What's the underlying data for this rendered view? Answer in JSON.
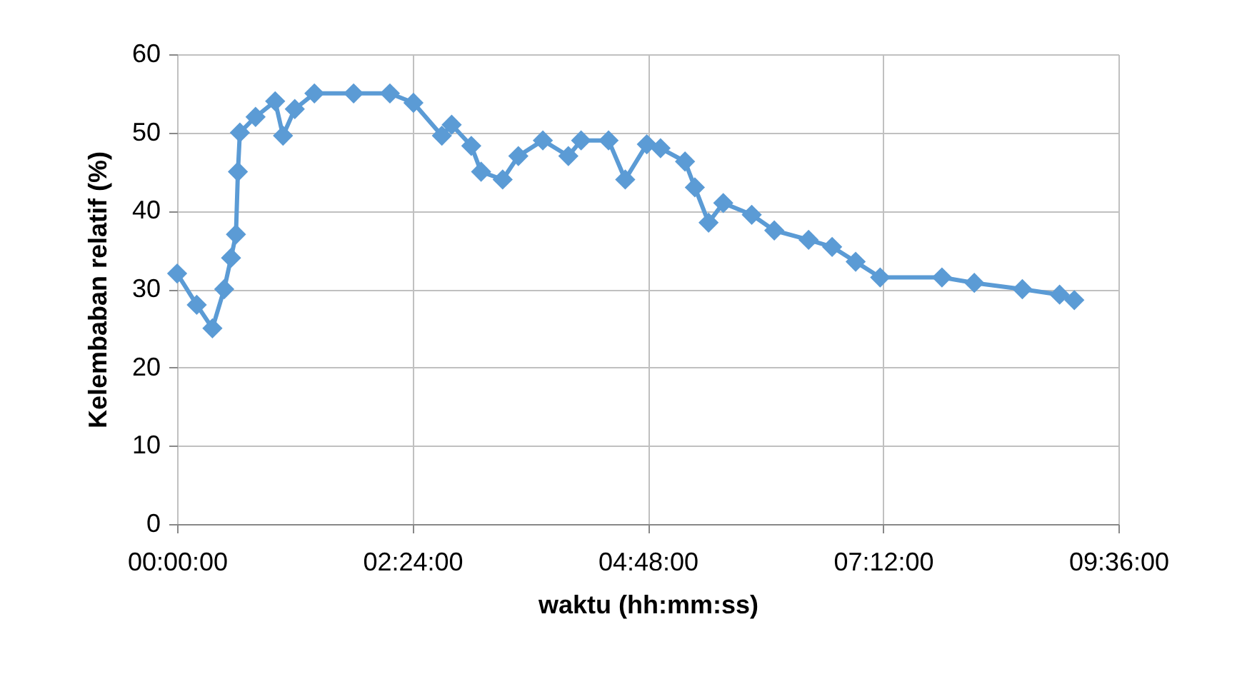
{
  "chart_data": {
    "type": "line",
    "xlabel": "waktu (hh:mm:ss)",
    "ylabel": "Kelembaban relatif (%)",
    "x": [
      0,
      0.2,
      0.36,
      0.48,
      0.55,
      0.6,
      0.62,
      0.64,
      0.8,
      1.0,
      1.08,
      1.2,
      1.4,
      1.8,
      2.17,
      2.41,
      2.7,
      2.8,
      3.0,
      3.1,
      3.32,
      3.48,
      3.73,
      3.99,
      4.12,
      4.4,
      4.57,
      4.79,
      4.93,
      5.18,
      5.28,
      5.42,
      5.57,
      5.86,
      6.09,
      6.44,
      6.68,
      6.92,
      7.17,
      7.8,
      8.13,
      8.62,
      9.0,
      9.15
    ],
    "series": [
      {
        "color": "#5b9bd5",
        "values": [
          32,
          28,
          25,
          30,
          34,
          37,
          45,
          50,
          52,
          54,
          49.6,
          53,
          55,
          55,
          55,
          53.8,
          49.6,
          51,
          48.3,
          45,
          44,
          47,
          49,
          47,
          49,
          49,
          44,
          48.5,
          48,
          46.3,
          43,
          38.5,
          41,
          39.5,
          37.5,
          36.3,
          35.4,
          33.5,
          31.5,
          31.5,
          30.8,
          30,
          29.3,
          28.6
        ]
      }
    ],
    "xlim": [
      0,
      9.6
    ],
    "xticks": [
      {
        "value": 0,
        "label": "00:00:00"
      },
      {
        "value": 2.4,
        "label": "02:24:00"
      },
      {
        "value": 4.8,
        "label": "04:48:00"
      },
      {
        "value": 7.2,
        "label": "07:12:00"
      },
      {
        "value": 9.6,
        "label": "09:36:00"
      }
    ],
    "ylim": [
      0,
      60
    ],
    "yticks": [
      0,
      10,
      20,
      30,
      40,
      50,
      60
    ],
    "grid": true,
    "marker": "diamond",
    "line_style": "solid"
  }
}
